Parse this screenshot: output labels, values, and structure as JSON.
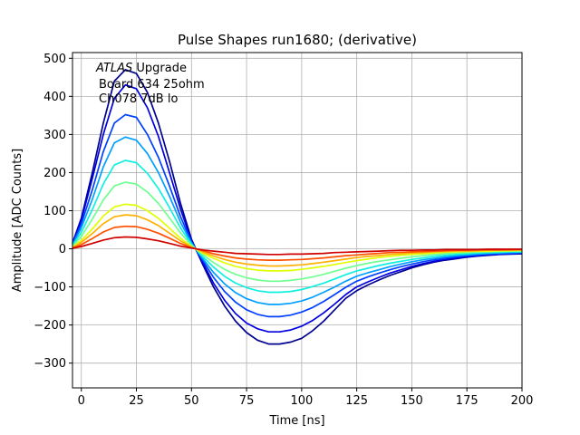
{
  "chart_data": {
    "type": "line",
    "title": "Pulse Shapes run1680; (derivative)",
    "xlabel": "Time [ns]",
    "ylabel": "Amplitude [ADC Counts]",
    "xlim": [
      -4,
      200
    ],
    "ylim": [
      -365,
      515
    ],
    "xticks": [
      0,
      25,
      50,
      75,
      100,
      125,
      150,
      175,
      200
    ],
    "yticks": [
      -300,
      -200,
      -100,
      0,
      100,
      200,
      300,
      400,
      500
    ],
    "grid": true,
    "annotations": {
      "italic": "ATLAS",
      "line1": " Upgrade",
      "line2": "Board 634 25ohm",
      "line3": "Ch078 7dB lo"
    },
    "x": [
      -4,
      0,
      5,
      10,
      15,
      20,
      25,
      30,
      35,
      40,
      45,
      50,
      55,
      60,
      65,
      70,
      75,
      80,
      85,
      90,
      95,
      100,
      105,
      110,
      115,
      120,
      125,
      130,
      135,
      140,
      145,
      150,
      155,
      160,
      165,
      170,
      175,
      180,
      185,
      190,
      195,
      200
    ],
    "series": [
      {
        "name": "s1",
        "color": "#00008f",
        "values": [
          15,
          80,
          200,
          330,
          440,
          470,
          460,
          410,
          330,
          230,
          120,
          25,
          -40,
          -100,
          -150,
          -190,
          -220,
          -240,
          -250,
          -250,
          -245,
          -235,
          -215,
          -190,
          -160,
          -130,
          -110,
          -95,
          -82,
          -70,
          -60,
          -50,
          -42,
          -35,
          -30,
          -26,
          -22,
          -19,
          -17,
          -15,
          -14,
          -13
        ]
      },
      {
        "name": "s2",
        "color": "#0000df",
        "values": [
          14,
          75,
          185,
          300,
          395,
          430,
          420,
          370,
          295,
          200,
          105,
          20,
          -35,
          -90,
          -135,
          -170,
          -195,
          -210,
          -218,
          -218,
          -213,
          -203,
          -188,
          -168,
          -145,
          -120,
          -100,
          -87,
          -75,
          -64,
          -55,
          -46,
          -39,
          -33,
          -28,
          -24,
          -21,
          -18,
          -16,
          -14,
          -13,
          -12
        ]
      },
      {
        "name": "s3",
        "color": "#0040ff",
        "values": [
          12,
          65,
          155,
          255,
          330,
          352,
          345,
          300,
          240,
          165,
          85,
          18,
          -30,
          -75,
          -112,
          -140,
          -160,
          -172,
          -178,
          -178,
          -174,
          -166,
          -154,
          -138,
          -120,
          -101,
          -85,
          -74,
          -64,
          -55,
          -47,
          -40,
          -34,
          -29,
          -25,
          -21,
          -18,
          -16,
          -14,
          -13,
          -12,
          -11
        ]
      },
      {
        "name": "s4",
        "color": "#00a0ff",
        "values": [
          10,
          55,
          130,
          215,
          278,
          293,
          285,
          250,
          200,
          138,
          70,
          15,
          -25,
          -62,
          -92,
          -115,
          -131,
          -141,
          -146,
          -146,
          -143,
          -137,
          -127,
          -114,
          -100,
          -85,
          -72,
          -63,
          -55,
          -47,
          -40,
          -34,
          -29,
          -25,
          -21,
          -18,
          -16,
          -14,
          -12,
          -11,
          -10,
          -9
        ]
      },
      {
        "name": "s5",
        "color": "#10f0e0",
        "values": [
          8,
          43,
          103,
          170,
          220,
          232,
          226,
          198,
          158,
          108,
          55,
          12,
          -20,
          -48,
          -72,
          -90,
          -102,
          -110,
          -114,
          -114,
          -112,
          -107,
          -99,
          -90,
          -79,
          -68,
          -58,
          -51,
          -44,
          -38,
          -33,
          -28,
          -24,
          -20,
          -17,
          -15,
          -13,
          -11,
          -10,
          -9,
          -8,
          -8
        ]
      },
      {
        "name": "s6",
        "color": "#70ff90",
        "values": [
          6,
          32,
          78,
          128,
          165,
          175,
          170,
          149,
          119,
          81,
          42,
          9,
          -15,
          -36,
          -54,
          -67,
          -76,
          -82,
          -85,
          -85,
          -83,
          -79,
          -74,
          -67,
          -59,
          -51,
          -44,
          -38,
          -33,
          -29,
          -25,
          -21,
          -18,
          -15,
          -13,
          -11,
          -10,
          -9,
          -8,
          -7,
          -6,
          -6
        ]
      },
      {
        "name": "s7",
        "color": "#e0ff00",
        "values": [
          4,
          22,
          52,
          86,
          110,
          117,
          114,
          100,
          80,
          54,
          28,
          6,
          -11,
          -25,
          -37,
          -46,
          -52,
          -56,
          -58,
          -58,
          -57,
          -54,
          -50,
          -46,
          -41,
          -36,
          -31,
          -27,
          -23,
          -20,
          -17,
          -15,
          -13,
          -11,
          -9,
          -8,
          -7,
          -6,
          -6,
          -5,
          -5,
          -4
        ]
      },
      {
        "name": "s8",
        "color": "#ffb000",
        "values": [
          3,
          17,
          40,
          66,
          84,
          89,
          87,
          76,
          61,
          41,
          21,
          5,
          -8,
          -19,
          -28,
          -35,
          -40,
          -43,
          -45,
          -45,
          -44,
          -42,
          -39,
          -35,
          -31,
          -27,
          -23,
          -20,
          -18,
          -15,
          -13,
          -11,
          -10,
          -8,
          -7,
          -6,
          -6,
          -5,
          -4,
          -4,
          -4,
          -3
        ]
      },
      {
        "name": "s9",
        "color": "#ff5000",
        "values": [
          2,
          11,
          27,
          44,
          56,
          59,
          58,
          51,
          41,
          28,
          14,
          3,
          -5,
          -13,
          -19,
          -24,
          -27,
          -29,
          -30,
          -30,
          -29,
          -28,
          -26,
          -24,
          -21,
          -18,
          -16,
          -14,
          -12,
          -10,
          -9,
          -8,
          -7,
          -6,
          -5,
          -4,
          -4,
          -3,
          -3,
          -3,
          -2,
          -2
        ]
      },
      {
        "name": "s10",
        "color": "#d00000",
        "values": [
          1,
          6,
          14,
          23,
          29,
          31,
          30,
          26,
          21,
          14,
          7,
          2,
          -3,
          -6,
          -9,
          -12,
          -13,
          -14,
          -15,
          -15,
          -14,
          -14,
          -13,
          -12,
          -10,
          -9,
          -8,
          -7,
          -6,
          -5,
          -4,
          -4,
          -3,
          -3,
          -2,
          -2,
          -2,
          -2,
          -1,
          -1,
          -1,
          -1
        ]
      }
    ]
  }
}
